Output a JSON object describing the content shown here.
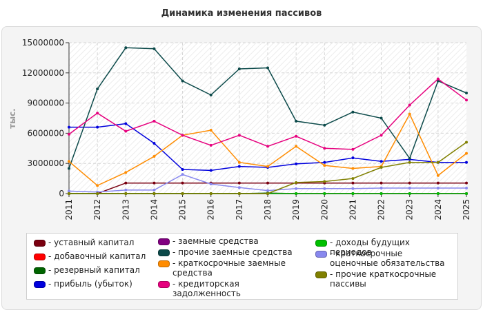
{
  "chart_data": {
    "type": "line",
    "title": "Динамика изменения пассивов",
    "ylabel": "тыс.",
    "xlabel": "",
    "categories": [
      "2011",
      "2012",
      "2013",
      "2014",
      "2015",
      "2016",
      "2017",
      "2018",
      "2019",
      "2020",
      "2021",
      "2022",
      "2023",
      "2024",
      "2025"
    ],
    "ylim": [
      0,
      15000000
    ],
    "yticks": [
      "0",
      "3000000",
      "6000000",
      "9000000",
      "12000000",
      "15000000"
    ],
    "grid": true,
    "legend_position": "bottom",
    "series": [
      {
        "name": "- уставный капитал",
        "color": "#7a0010",
        "values": [
          0,
          0,
          1050000,
          1050000,
          1050000,
          1050000,
          1050000,
          1050000,
          1050000,
          1050000,
          1050000,
          1050000,
          1050000,
          1050000,
          1050000
        ]
      },
      {
        "name": "- добавочный капитал",
        "color": "#ff0000",
        "values": [
          0,
          0,
          0,
          0,
          0,
          0,
          0,
          0,
          0,
          0,
          0,
          0,
          0,
          0,
          0
        ]
      },
      {
        "name": "- резервный капитал",
        "color": "#006400",
        "values": [
          0,
          0,
          0,
          0,
          0,
          0,
          0,
          50000,
          0,
          0,
          0,
          0,
          0,
          0,
          0
        ]
      },
      {
        "name": "- прибыль (убыток)",
        "color": "#0000dd",
        "values": [
          6600000,
          6600000,
          6950000,
          5000000,
          2400000,
          2300000,
          2700000,
          2600000,
          2950000,
          3100000,
          3550000,
          3200000,
          3400000,
          3100000,
          3100000
        ]
      },
      {
        "name": "- заемные средства",
        "color": "#800080",
        "values": [
          0,
          0,
          0,
          0,
          0,
          0,
          0,
          0,
          0,
          0,
          0,
          0,
          0,
          0,
          0
        ]
      },
      {
        "name": "- прочие заемные средства",
        "color": "#0c4a4a",
        "values": [
          2500000,
          10400000,
          14500000,
          14400000,
          11200000,
          9800000,
          12400000,
          12500000,
          7200000,
          6800000,
          8100000,
          7500000,
          3500000,
          11200000,
          10000000
        ]
      },
      {
        "name": "- краткосрочные заемные средства",
        "color": "#ff8c00",
        "values": [
          3200000,
          800000,
          2100000,
          3700000,
          5800000,
          6300000,
          3100000,
          2700000,
          4700000,
          2800000,
          2500000,
          2700000,
          7900000,
          1800000,
          4000000
        ]
      },
      {
        "name": "- кредиторская задолженность",
        "color": "#e6007e",
        "values": [
          5900000,
          8000000,
          6200000,
          7200000,
          5800000,
          4800000,
          5800000,
          4700000,
          5700000,
          4500000,
          4400000,
          5800000,
          8800000,
          11400000,
          9300000
        ]
      },
      {
        "name": "- доходы будущих периодов",
        "color": "#00c000",
        "values": [
          0,
          0,
          0,
          0,
          0,
          0,
          0,
          0,
          0,
          0,
          0,
          0,
          0,
          0,
          0
        ]
      },
      {
        "name": "- краткосрочные оценочные обязательства",
        "color": "#8888ee",
        "values": [
          250000,
          150000,
          350000,
          350000,
          1900000,
          950000,
          600000,
          300000,
          500000,
          500000,
          500000,
          550000,
          550000,
          550000,
          550000
        ]
      },
      {
        "name": "- прочие краткосрочные пассивы",
        "color": "#808000",
        "values": [
          0,
          0,
          0,
          0,
          0,
          0,
          0,
          0,
          1100000,
          1200000,
          1500000,
          2600000,
          3100000,
          3100000,
          5100000
        ]
      }
    ]
  }
}
